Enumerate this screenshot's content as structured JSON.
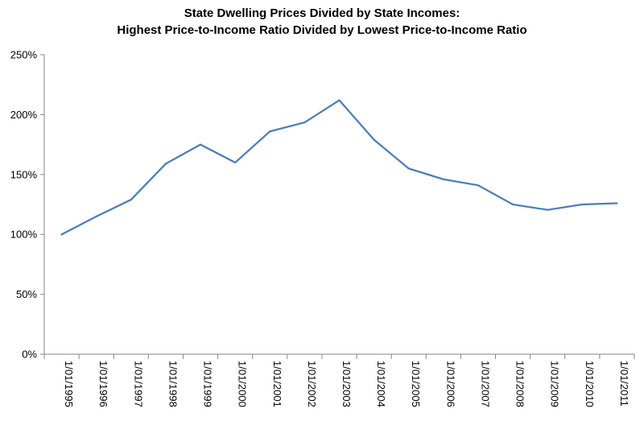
{
  "chart_data": {
    "type": "line",
    "title_lines": [
      "State Dwelling Prices Divided by State Incomes:",
      "Highest Price-to-Income Ratio Divided by Lowest Price-to-Income Ratio"
    ],
    "categories": [
      "1/01/1995",
      "1/01/1996",
      "1/01/1997",
      "1/01/1998",
      "1/01/1999",
      "1/01/2000",
      "1/01/2001",
      "1/01/2002",
      "1/01/2003",
      "1/01/2004",
      "1/01/2005",
      "1/01/2006",
      "1/01/2007",
      "1/01/2008",
      "1/01/2009",
      "1/01/2010",
      "1/01/2011"
    ],
    "values": [
      1.0,
      1.15,
      1.29,
      1.59,
      1.75,
      1.6,
      1.86,
      1.935,
      2.12,
      1.79,
      1.55,
      1.46,
      1.41,
      1.25,
      1.205,
      1.25,
      1.26
    ],
    "y_ticks": [
      "0%",
      "50%",
      "100%",
      "150%",
      "200%",
      "250%"
    ],
    "ylim": [
      0,
      2.5
    ],
    "grid": false,
    "legend": "none",
    "line_color": "#4a7ebb"
  }
}
